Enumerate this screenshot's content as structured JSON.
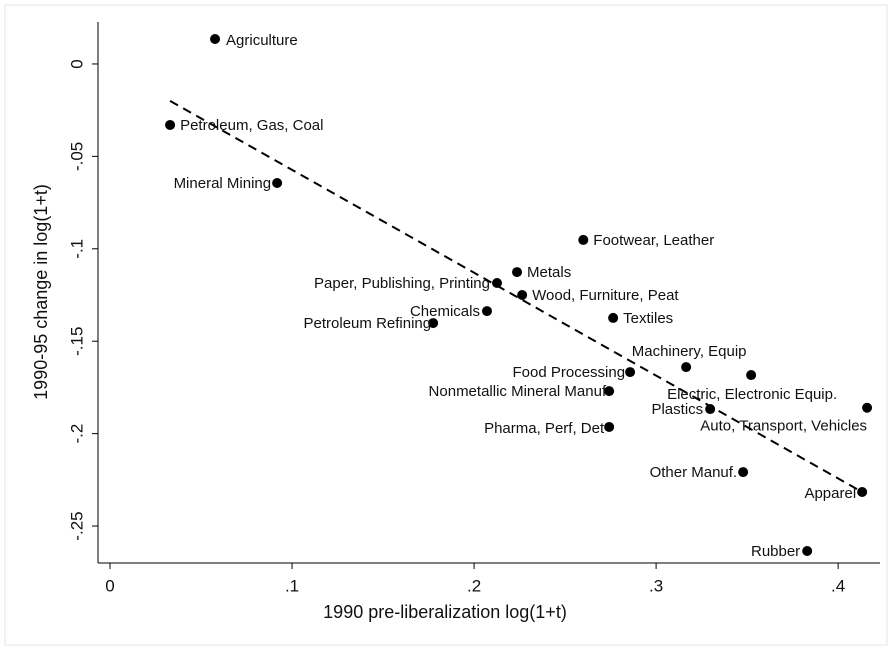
{
  "chart_data": {
    "type": "scatter",
    "x_label": "1990 pre-liberalization log(1+t)",
    "y_label": "1990-95 change in log(1+t)",
    "point_color": "#000000",
    "labels": [
      "Agriculture",
      "Petroleum, Gas, Coal",
      "Mineral Mining",
      "Footwear, Leather",
      "Metals",
      "Paper, Publishing, Printing",
      "Wood, Furniture, Peat",
      "Chemicals",
      "Petroleum Refining",
      "Textiles",
      "Machinery, Equip",
      "Food Processing",
      "Electric, Electronic Equip.",
      "Nonmetallic Mineral Manuf",
      "Plastics",
      "Auto, Transport, Vehicles",
      "Pharma, Perf, Det",
      "Other Manuf.",
      "Apparel",
      "Rubber"
    ],
    "x": [
      0.0577,
      0.033,
      0.0918,
      0.26,
      0.2236,
      0.2126,
      0.2264,
      0.2071,
      0.1775,
      0.2764,
      0.3165,
      0.2857,
      0.3522,
      0.2742,
      0.3297,
      0.4159,
      0.2742,
      0.3478,
      0.4132,
      0.383
    ],
    "y": [
      0.0135,
      -0.033,
      -0.0644,
      -0.0952,
      -0.1126,
      -0.1185,
      -0.125,
      -0.1337,
      -0.1402,
      -0.1374,
      -0.164,
      -0.1667,
      -0.1683,
      -0.177,
      -0.1867,
      -0.186,
      -0.1964,
      -0.2208,
      -0.2316,
      -0.2635
    ],
    "fit_line": {
      "x": [
        0.033,
        0.4132
      ],
      "y": [
        -0.02,
        -0.2316
      ],
      "color": "#000000",
      "dash": true
    },
    "xlim": [
      -0.0066,
      0.423
    ],
    "ylim": [
      -0.27,
      0.0227
    ],
    "xticks": [
      0,
      {
        "value": 0.1,
        "label": ".1"
      },
      {
        "value": 0.2,
        "label": ".2"
      },
      {
        "value": 0.3,
        "label": ".3"
      },
      {
        "value": 0.4,
        "label": ".4"
      }
    ],
    "yticks": [
      0,
      {
        "value": -0.05,
        "label": "-.05"
      },
      {
        "value": -0.1,
        "label": "-.1"
      },
      {
        "value": -0.15,
        "label": "-.15"
      },
      {
        "value": -0.2,
        "label": "-.2"
      },
      {
        "value": -0.25,
        "label": "-.25"
      }
    ]
  }
}
